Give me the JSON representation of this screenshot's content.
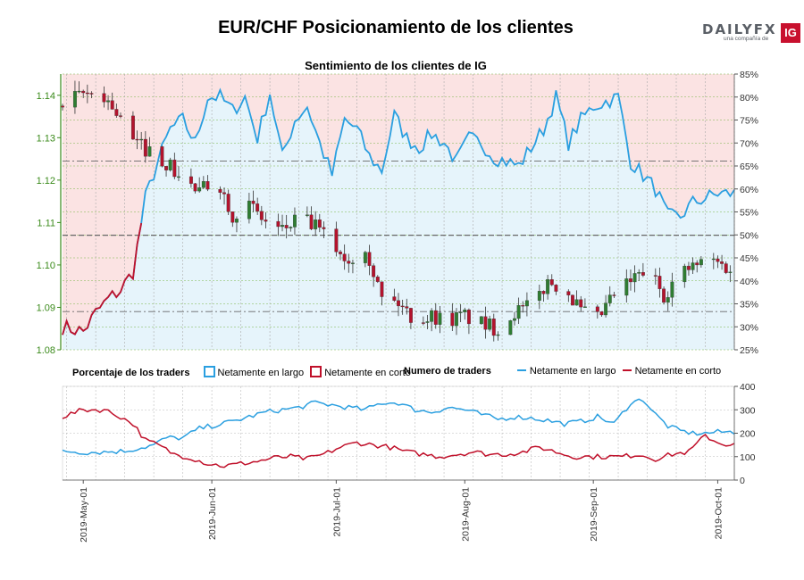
{
  "header": {
    "title": "EUR/CHF Posicionamiento de los clientes",
    "subtitle": "Sentimiento de los clientes de IG"
  },
  "logo": {
    "wordmark": "DAILYFX",
    "tagline": "una compañía de",
    "badge": "IG"
  },
  "legend": {
    "left_title": "Porcentaje de los traders",
    "left_long": "Netamente en largo",
    "left_short": "Netamente en corto",
    "right_title": "Numero de traders",
    "right_long": "Netamente en largo",
    "right_short": "Netamente en corto"
  },
  "colors": {
    "long": "#2a9fe0",
    "short": "#c0102a",
    "long_fill": "#e6f4fb",
    "short_fill": "#fbe3e3",
    "price_axis": "#3a8a1a",
    "candle_up": "#2f7d32",
    "candle_down": "#b3132d"
  },
  "chart_data": [
    {
      "type": "candlestick",
      "name": "price",
      "y_axis_ticks": [
        "1.14",
        "1.13",
        "1.12",
        "1.11",
        "1.10",
        "1.09",
        "1.08"
      ],
      "ylim": [
        1.08,
        1.145
      ],
      "right_axis_ticks": [
        "85%",
        "80%",
        "75%",
        "70%",
        "65%",
        "60%",
        "55%",
        "50%",
        "45%",
        "40%",
        "35%",
        "30%",
        "25%"
      ],
      "right_lim": [
        25,
        85
      ],
      "x_ticks": [
        "2019-May-01",
        "2019-Jun-01",
        "2019-Jul-01",
        "2019-Aug-01",
        "2019-Sep-01",
        "2019-Oct-01"
      ],
      "x_range_days": [
        -5,
        157
      ],
      "reference_lines": [
        1.1245,
        1.107,
        1.089
      ],
      "close_anchors": [
        [
          -5,
          1.1375
        ],
        [
          0,
          1.14
        ],
        [
          4,
          1.141
        ],
        [
          8,
          1.136
        ],
        [
          12,
          1.129
        ],
        [
          16,
          1.127
        ],
        [
          20,
          1.124
        ],
        [
          24,
          1.12
        ],
        [
          28,
          1.117
        ],
        [
          32,
          1.121
        ],
        [
          36,
          1.112
        ],
        [
          40,
          1.114
        ],
        [
          44,
          1.11
        ],
        [
          48,
          1.108
        ],
        [
          52,
          1.111
        ],
        [
          56,
          1.109
        ],
        [
          60,
          1.105
        ],
        [
          64,
          1.101
        ],
        [
          68,
          1.105
        ],
        [
          72,
          1.092
        ],
        [
          76,
          1.091
        ],
        [
          80,
          1.087
        ],
        [
          84,
          1.088
        ],
        [
          88,
          1.087
        ],
        [
          92,
          1.088
        ],
        [
          96,
          1.086
        ],
        [
          100,
          1.085
        ],
        [
          104,
          1.089
        ],
        [
          108,
          1.09
        ],
        [
          112,
          1.096
        ],
        [
          116,
          1.095
        ],
        [
          120,
          1.089
        ],
        [
          124,
          1.087
        ],
        [
          128,
          1.093
        ],
        [
          132,
          1.096
        ],
        [
          136,
          1.099
        ],
        [
          140,
          1.093
        ],
        [
          144,
          1.098
        ],
        [
          148,
          1.1
        ],
        [
          152,
          1.101
        ],
        [
          156,
          1.099
        ]
      ],
      "net_long_pct_anchors": [
        [
          -5,
          30
        ],
        [
          0,
          29
        ],
        [
          3,
          33
        ],
        [
          6,
          36
        ],
        [
          9,
          38
        ],
        [
          12,
          42
        ],
        [
          15,
          58
        ],
        [
          18,
          66
        ],
        [
          21,
          73
        ],
        [
          24,
          75
        ],
        [
          27,
          70
        ],
        [
          30,
          80
        ],
        [
          33,
          80
        ],
        [
          36,
          77
        ],
        [
          39,
          80
        ],
        [
          42,
          71
        ],
        [
          45,
          81
        ],
        [
          48,
          67
        ],
        [
          51,
          75
        ],
        [
          54,
          78
        ],
        [
          57,
          70
        ],
        [
          60,
          63
        ],
        [
          63,
          75
        ],
        [
          66,
          73
        ],
        [
          69,
          67
        ],
        [
          72,
          64
        ],
        [
          75,
          76
        ],
        [
          78,
          71
        ],
        [
          81,
          69
        ],
        [
          84,
          72
        ],
        [
          87,
          70
        ],
        [
          90,
          66
        ],
        [
          93,
          71
        ],
        [
          96,
          70
        ],
        [
          99,
          67
        ],
        [
          102,
          66
        ],
        [
          105,
          65
        ],
        [
          108,
          69
        ],
        [
          111,
          73
        ],
        [
          114,
          80
        ],
        [
          117,
          70
        ],
        [
          120,
          75
        ],
        [
          123,
          78
        ],
        [
          126,
          79
        ],
        [
          129,
          80
        ],
        [
          132,
          66
        ],
        [
          135,
          63
        ],
        [
          138,
          60
        ],
        [
          141,
          54
        ],
        [
          144,
          54
        ],
        [
          147,
          57
        ],
        [
          150,
          58
        ],
        [
          153,
          59
        ],
        [
          156,
          59
        ]
      ]
    },
    {
      "type": "line",
      "name": "traders",
      "y_axis_ticks": [
        "400",
        "300",
        "200",
        "100",
        "0"
      ],
      "ylim": [
        0,
        400
      ],
      "series": [
        {
          "name": "Netamente en largo",
          "anchors": [
            [
              -5,
              125
            ],
            [
              0,
              118
            ],
            [
              5,
              120
            ],
            [
              10,
              124
            ],
            [
              14,
              138
            ],
            [
              17,
              150
            ],
            [
              20,
              180
            ],
            [
              24,
              180
            ],
            [
              28,
              220
            ],
            [
              32,
              235
            ],
            [
              36,
              250
            ],
            [
              40,
              270
            ],
            [
              44,
              290
            ],
            [
              48,
              300
            ],
            [
              52,
              310
            ],
            [
              56,
              330
            ],
            [
              60,
              320
            ],
            [
              64,
              310
            ],
            [
              68,
              300
            ],
            [
              72,
              330
            ],
            [
              76,
              330
            ],
            [
              80,
              300
            ],
            [
              84,
              290
            ],
            [
              88,
              310
            ],
            [
              92,
              300
            ],
            [
              96,
              280
            ],
            [
              100,
              260
            ],
            [
              104,
              270
            ],
            [
              108,
              265
            ],
            [
              112,
              255
            ],
            [
              116,
              240
            ],
            [
              120,
              250
            ],
            [
              124,
              270
            ],
            [
              128,
              240
            ],
            [
              132,
              330
            ],
            [
              135,
              345
            ],
            [
              138,
              280
            ],
            [
              141,
              230
            ],
            [
              144,
              210
            ],
            [
              147,
              200
            ],
            [
              150,
              200
            ],
            [
              153,
              205
            ],
            [
              156,
              205
            ]
          ]
        },
        {
          "name": "Netamente en corto",
          "anchors": [
            [
              -5,
              270
            ],
            [
              0,
              300
            ],
            [
              5,
              300
            ],
            [
              9,
              270
            ],
            [
              12,
              240
            ],
            [
              15,
              170
            ],
            [
              18,
              150
            ],
            [
              22,
              110
            ],
            [
              26,
              95
            ],
            [
              30,
              70
            ],
            [
              34,
              60
            ],
            [
              38,
              70
            ],
            [
              42,
              80
            ],
            [
              46,
              95
            ],
            [
              50,
              100
            ],
            [
              54,
              90
            ],
            [
              58,
              110
            ],
            [
              62,
              140
            ],
            [
              66,
              160
            ],
            [
              70,
              150
            ],
            [
              74,
              140
            ],
            [
              78,
              120
            ],
            [
              82,
              110
            ],
            [
              86,
              100
            ],
            [
              90,
              110
            ],
            [
              94,
              120
            ],
            [
              98,
              110
            ],
            [
              102,
              110
            ],
            [
              106,
              120
            ],
            [
              110,
              140
            ],
            [
              114,
              120
            ],
            [
              118,
              100
            ],
            [
              122,
              100
            ],
            [
              126,
              100
            ],
            [
              130,
              100
            ],
            [
              134,
              110
            ],
            [
              138,
              90
            ],
            [
              142,
              110
            ],
            [
              146,
              120
            ],
            [
              150,
              190
            ],
            [
              153,
              160
            ],
            [
              156,
              150
            ]
          ]
        }
      ]
    }
  ]
}
